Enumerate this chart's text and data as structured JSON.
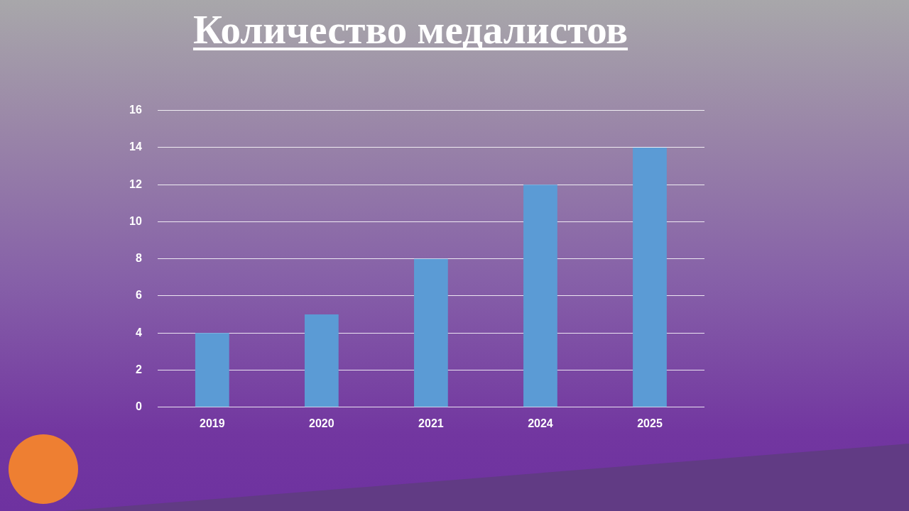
{
  "chart_data": {
    "type": "bar",
    "title": "Количество медалистов",
    "categories": [
      "2019",
      "2020",
      "2021",
      "2024",
      "2025"
    ],
    "values": [
      4,
      5,
      8,
      12,
      14
    ],
    "color": "#5b9bd5",
    "ylim": [
      0,
      16
    ],
    "yticks": [
      0,
      2,
      4,
      6,
      8,
      10,
      12,
      14,
      16
    ],
    "grid": "y"
  }
}
